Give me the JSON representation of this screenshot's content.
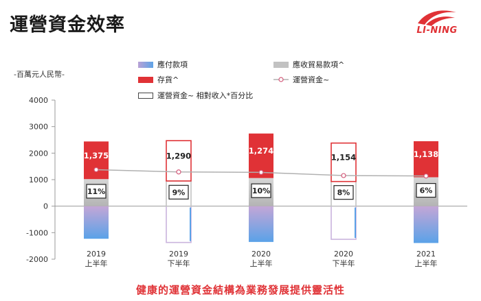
{
  "page": {
    "title": "運營資金效率",
    "logo_text": "LI-NING",
    "unit_label": "-百萬元人民幣-",
    "conclusion": "健康的運營資金結構為業務發展提供靈活性"
  },
  "legend": {
    "payables": "應付款項",
    "receivables": "應收貿易款項^",
    "inventory": "存貨^",
    "working_capital": "運營資金~",
    "ratio": "運營資金~ 相對收入*百分比"
  },
  "colors": {
    "inventory": "#e03236",
    "receivables": "#c2c2c2",
    "payables_top": "#c4a6d6",
    "payables_bottom": "#5aa2e8",
    "line": "#b0b0b0",
    "marker": "#d45a7a",
    "brand": "#e03236"
  },
  "chart_data": {
    "type": "bar",
    "categories": [
      [
        "2019",
        "上半年"
      ],
      [
        "2019",
        "下半年"
      ],
      [
        "2020",
        "上半年"
      ],
      [
        "2020",
        "下半年"
      ],
      [
        "2021",
        "上半年"
      ]
    ],
    "ylim": [
      -2000,
      4000
    ],
    "yticks": [
      "4000",
      "3000",
      "2000",
      "1000",
      "0",
      "-1000",
      "-2000"
    ],
    "highlight_categories": [
      1,
      3
    ],
    "series": [
      {
        "name": "存貨^",
        "stack": "positive",
        "values": [
          1420,
          1520,
          1680,
          1450,
          1360
        ]
      },
      {
        "name": "應收貿易款項^",
        "stack": "positive",
        "values": [
          1020,
          950,
          1060,
          930,
          1090
        ]
      },
      {
        "name": "應付款項",
        "stack": "negative",
        "values": [
          -1230,
          -1370,
          -1350,
          -1250,
          -1390
        ]
      },
      {
        "name": "運營資金~",
        "type": "line",
        "values": [
          1375,
          1290,
          1274,
          1154,
          1138
        ],
        "labels": [
          "1,375",
          "1,290",
          "1,274",
          "1,154",
          "1,138"
        ]
      },
      {
        "name": "運營資金~ 相對收入*百分比",
        "type": "label",
        "values": [
          11,
          9,
          10,
          8,
          6
        ],
        "labels": [
          "11%",
          "9%",
          "10%",
          "8%",
          "6%"
        ]
      }
    ]
  }
}
